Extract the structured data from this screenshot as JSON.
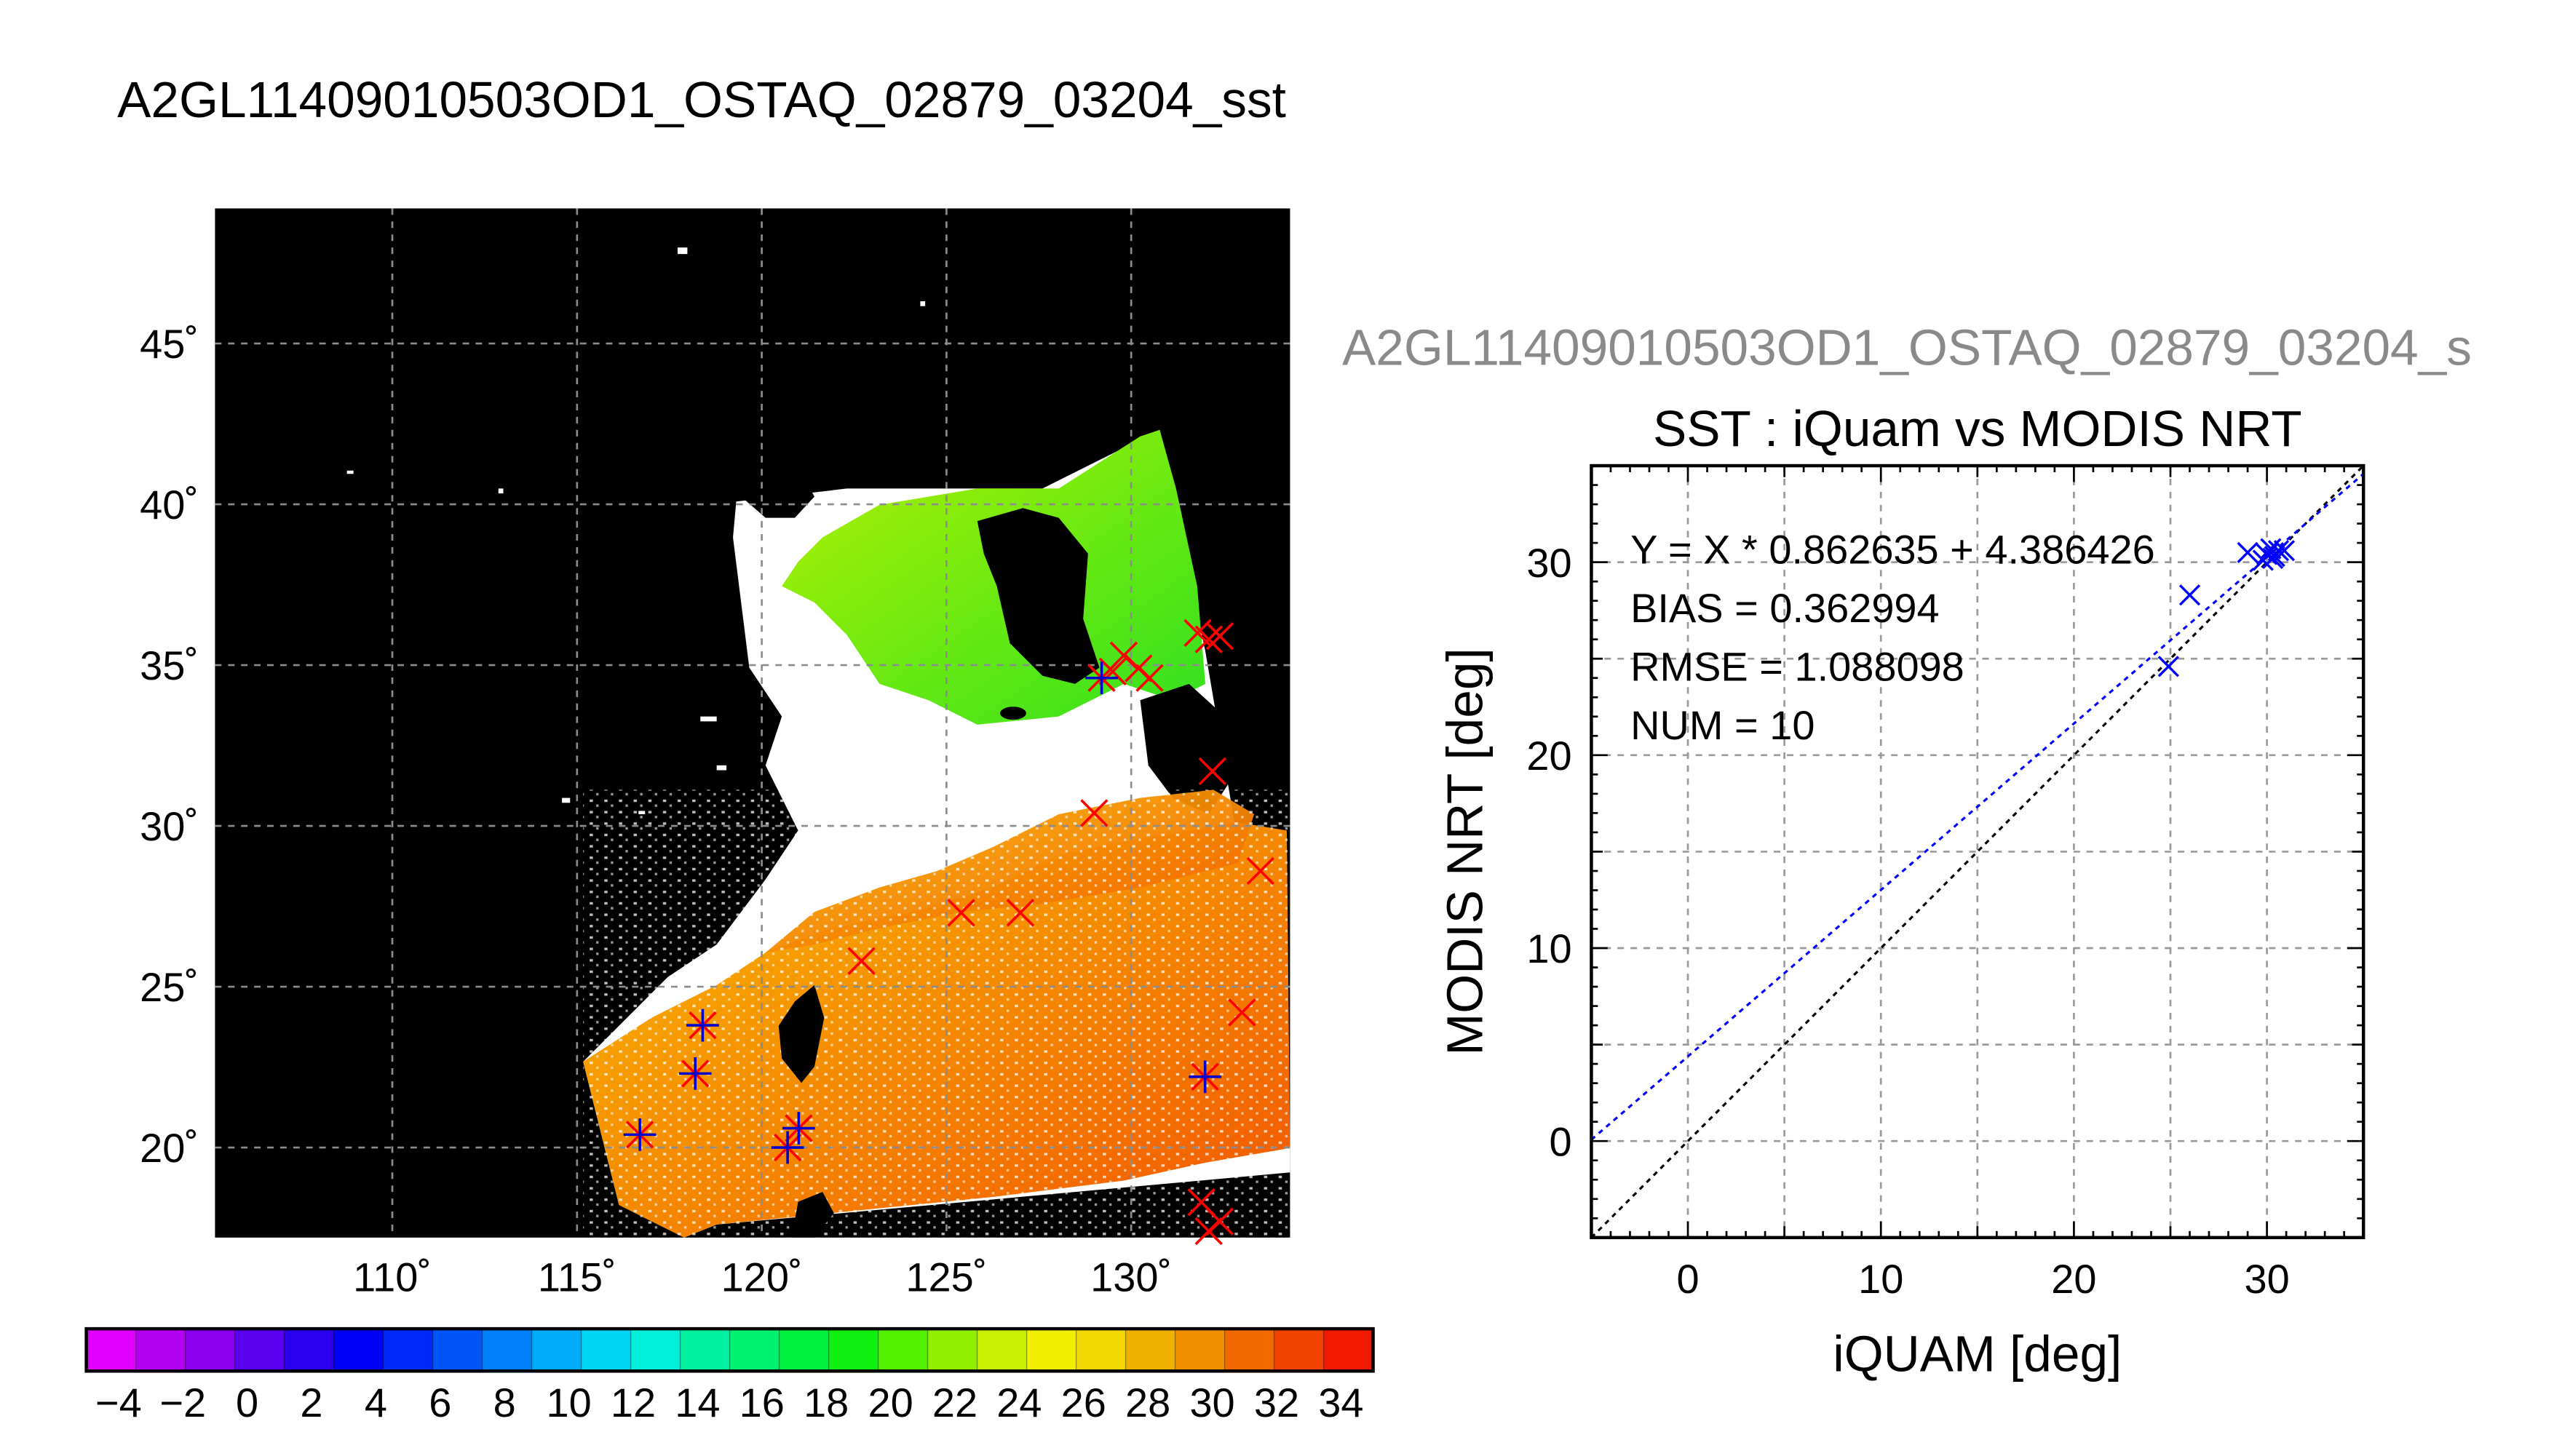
{
  "header": {
    "title": "A2GL11409010503OD1_OSTAQ_02879_03204_sst",
    "subtitle": "A2GL11409010503OD1_OSTAQ_02879_03204_s"
  },
  "map": {
    "lat_labels": [
      "45˚",
      "40˚",
      "35˚",
      "30˚",
      "25˚",
      "20˚"
    ],
    "lat_values": [
      45,
      40,
      35,
      30,
      25,
      20
    ],
    "lon_labels": [
      "110˚",
      "115˚",
      "120˚",
      "125˚",
      "130˚"
    ],
    "lon_values": [
      110,
      115,
      120,
      125,
      130
    ],
    "lon_range": [
      105.2,
      134.3
    ],
    "lat_range": [
      17.2,
      49.2
    ],
    "insitu_points": [
      [
        129.2,
        34.6
      ],
      [
        129.8,
        35.3
      ],
      [
        130.2,
        34.9
      ],
      [
        129.5,
        34.8
      ],
      [
        130.5,
        34.6
      ],
      [
        131.8,
        36.0
      ],
      [
        132.1,
        35.8
      ],
      [
        132.4,
        35.9
      ],
      [
        132.2,
        31.7
      ],
      [
        129.0,
        30.4
      ],
      [
        133.5,
        28.6
      ],
      [
        125.4,
        27.3
      ],
      [
        127.0,
        27.3
      ],
      [
        122.7,
        25.8
      ],
      [
        133.0,
        24.2
      ],
      [
        118.4,
        23.8
      ],
      [
        118.2,
        22.3
      ],
      [
        132.0,
        22.2
      ],
      [
        116.7,
        20.4
      ],
      [
        121.0,
        20.6
      ],
      [
        120.7,
        20.0
      ],
      [
        131.9,
        18.3
      ],
      [
        132.4,
        17.7
      ],
      [
        132.1,
        17.4
      ]
    ],
    "matched_points": [
      [
        129.2,
        34.6
      ],
      [
        118.4,
        23.8
      ],
      [
        118.2,
        22.3
      ],
      [
        132.0,
        22.2
      ],
      [
        116.7,
        20.4
      ],
      [
        120.7,
        20.0
      ],
      [
        121.0,
        20.6
      ]
    ]
  },
  "colorbar": {
    "tick_labels": [
      "−4",
      "−2",
      "0",
      "2",
      "4",
      "6",
      "8",
      "10",
      "12",
      "14",
      "16",
      "18",
      "20",
      "22",
      "24",
      "26",
      "28",
      "30",
      "32",
      "34"
    ],
    "range": [
      -5,
      35
    ],
    "colors": [
      "#e000ff",
      "#b400f0",
      "#8a00ee",
      "#5a00ee",
      "#2a00ee",
      "#0000f8",
      "#0028f8",
      "#0055f8",
      "#0080f8",
      "#00acf8",
      "#00d4f4",
      "#00f0dc",
      "#00f0a0",
      "#00f070",
      "#00f040",
      "#10f010",
      "#50f000",
      "#90f000",
      "#c8f000",
      "#f0f000",
      "#f0d800",
      "#f0b000",
      "#f09000",
      "#f06800",
      "#f04400",
      "#f01800"
    ]
  },
  "chart_data": {
    "type": "scatter",
    "title": "SST : iQuam vs MODIS NRT",
    "xlabel": "iQUAM [deg]",
    "ylabel": "MODIS NRT [deg]",
    "xlim": [
      -5,
      35
    ],
    "ylim": [
      -5,
      35
    ],
    "xticks": [
      0,
      10,
      20,
      30
    ],
    "yticks": [
      0,
      10,
      20,
      30
    ],
    "grid": true,
    "annotations": [
      "Y = X * 0.862635 + 4.386426",
      "BIAS = 0.362994",
      "RMSE = 1.088098",
      "NUM = 10"
    ],
    "points": [
      {
        "x": 24.9,
        "y": 24.6
      },
      {
        "x": 26.0,
        "y": 28.3
      },
      {
        "x": 29.0,
        "y": 30.5
      },
      {
        "x": 29.8,
        "y": 30.1
      },
      {
        "x": 30.0,
        "y": 30.4
      },
      {
        "x": 30.2,
        "y": 30.7
      },
      {
        "x": 30.4,
        "y": 30.3
      },
      {
        "x": 30.6,
        "y": 30.6
      },
      {
        "x": 30.9,
        "y": 30.6
      },
      {
        "x": 30.3,
        "y": 30.2
      }
    ],
    "fit": {
      "slope": 0.862635,
      "intercept": 4.386426
    },
    "identity_line": true,
    "point_color": "#0000ff",
    "fit_color": "#0000ff",
    "identity_color": "#000000"
  }
}
